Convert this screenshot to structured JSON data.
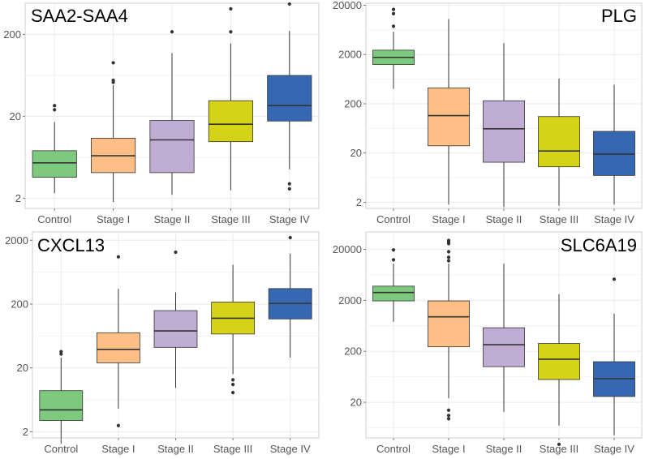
{
  "colors": {
    "Control": "#7dc97d",
    "Stage I": "#fdbf86",
    "Stage II": "#bfadd4",
    "Stage III": "#d4d317",
    "Stage IV": "#3567b3",
    "grid": "#ebebeb",
    "border": "#cfcfcf",
    "median": "#333333"
  },
  "chart_data": [
    {
      "type": "box",
      "title": "SAA2-SAA4",
      "title_position": "top-left",
      "scale": "log10",
      "ylim": [
        1.5,
        480
      ],
      "yticks": [
        2,
        20,
        200
      ],
      "ytick_labels": [
        "2",
        "20",
        "200"
      ],
      "categories": [
        "Control",
        "Stage I",
        "Stage II",
        "Stage III",
        "Stage IV"
      ],
      "boxes": [
        {
          "q1": 3.6,
          "median": 5.4,
          "q3": 7.6,
          "whisker_low": 2.3,
          "whisker_high": 17,
          "outliers": [
            24,
            27
          ]
        },
        {
          "q1": 4.1,
          "median": 6.6,
          "q3": 10.8,
          "whisker_low": 1.8,
          "whisker_high": 48,
          "outliers": [
            52,
            55,
            90
          ]
        },
        {
          "q1": 4.1,
          "median": 10.3,
          "q3": 17.8,
          "whisker_low": 2.2,
          "whisker_high": 118,
          "outliers": [
            215
          ]
        },
        {
          "q1": 9.8,
          "median": 16.0,
          "q3": 31,
          "whisker_low": 2.5,
          "whisker_high": 155,
          "outliers": [
            215,
            410
          ]
        },
        {
          "q1": 17.5,
          "median": 27,
          "q3": 63,
          "whisker_low": 4.5,
          "whisker_high": 220,
          "outliers": [
            2.6,
            3.0,
            470
          ]
        }
      ]
    },
    {
      "type": "box",
      "title": "PLG",
      "title_position": "top-right",
      "scale": "log10",
      "ylim": [
        1.5,
        22000
      ],
      "yticks": [
        2,
        20,
        200,
        2000,
        20000
      ],
      "ytick_labels": [
        "2",
        "20",
        "200",
        "2000",
        "20000"
      ],
      "categories": [
        "Control",
        "Stage I",
        "Stage II",
        "Stage III",
        "Stage IV"
      ],
      "boxes": [
        {
          "q1": 1250,
          "median": 1750,
          "q3": 2450,
          "whisker_low": 400,
          "whisker_high": 5800,
          "outliers": [
            7500,
            13500,
            16500
          ]
        },
        {
          "q1": 28,
          "median": 115,
          "q3": 420,
          "whisker_low": 1.8,
          "whisker_high": 10500,
          "outliers": []
        },
        {
          "q1": 13,
          "median": 62,
          "q3": 230,
          "whisker_low": 1.6,
          "whisker_high": 3400,
          "outliers": []
        },
        {
          "q1": 10.5,
          "median": 22,
          "q3": 110,
          "whisker_low": 1.7,
          "whisker_high": 650,
          "outliers": []
        },
        {
          "q1": 7,
          "median": 19,
          "q3": 55,
          "whisker_low": 1.8,
          "whisker_high": 490,
          "outliers": []
        }
      ]
    },
    {
      "type": "box",
      "title": "CXCL13",
      "title_position": "top-left",
      "scale": "log10",
      "ylim": [
        1.6,
        2700
      ],
      "yticks": [
        2,
        20,
        200,
        2000
      ],
      "ytick_labels": [
        "2",
        "20",
        "200",
        "2000"
      ],
      "categories": [
        "Control",
        "Stage I",
        "Stage II",
        "Stage III",
        "Stage IV"
      ],
      "boxes": [
        {
          "q1": 3.0,
          "median": 4.4,
          "q3": 8.8,
          "whisker_low": 1.3,
          "whisker_high": 29,
          "outliers": [
            33,
            36
          ]
        },
        {
          "q1": 24,
          "median": 39,
          "q3": 71,
          "whisker_low": 4.6,
          "whisker_high": 345,
          "outliers": [
            2.5,
            1100
          ]
        },
        {
          "q1": 42,
          "median": 76,
          "q3": 158,
          "whisker_low": 9.7,
          "whisker_high": 305,
          "outliers": [
            1300
          ]
        },
        {
          "q1": 68,
          "median": 120,
          "q3": 215,
          "whisker_low": 16,
          "whisker_high": 825,
          "outliers": [
            8.2,
            11,
            13
          ]
        },
        {
          "q1": 117,
          "median": 205,
          "q3": 350,
          "whisker_low": 29,
          "whisker_high": 1230,
          "outliers": [
            2200
          ]
        }
      ]
    },
    {
      "type": "box",
      "title": "SLC6A19",
      "title_position": "top-right",
      "scale": "log10",
      "ylim": [
        4.0,
        44000
      ],
      "yticks": [
        20,
        200,
        2000,
        20000
      ],
      "ytick_labels": [
        "20",
        "200",
        "2000",
        "20000"
      ],
      "categories": [
        "Control",
        "Stage I",
        "Stage II",
        "Stage III",
        "Stage IV"
      ],
      "boxes": [
        {
          "q1": 1950,
          "median": 2850,
          "q3": 3800,
          "whisker_low": 760,
          "whisker_high": 10500,
          "outliers": [
            12500,
            19500
          ]
        },
        {
          "q1": 245,
          "median": 950,
          "q3": 1950,
          "whisker_low": 24,
          "whisker_high": 10500,
          "outliers": [
            9.5,
            11,
            14,
            12000,
            14000,
            18000,
            26000,
            28000,
            30000
          ]
        },
        {
          "q1": 100,
          "median": 270,
          "q3": 580,
          "whisker_low": 13,
          "whisker_high": 10500,
          "outliers": []
        },
        {
          "q1": 56,
          "median": 140,
          "q3": 285,
          "whisker_low": 7.0,
          "whisker_high": 2650,
          "outliers": [
            3.0
          ]
        },
        {
          "q1": 26,
          "median": 58,
          "q3": 125,
          "whisker_low": 4.5,
          "whisker_high": 1100,
          "outliers": [
            5200
          ]
        }
      ]
    }
  ]
}
